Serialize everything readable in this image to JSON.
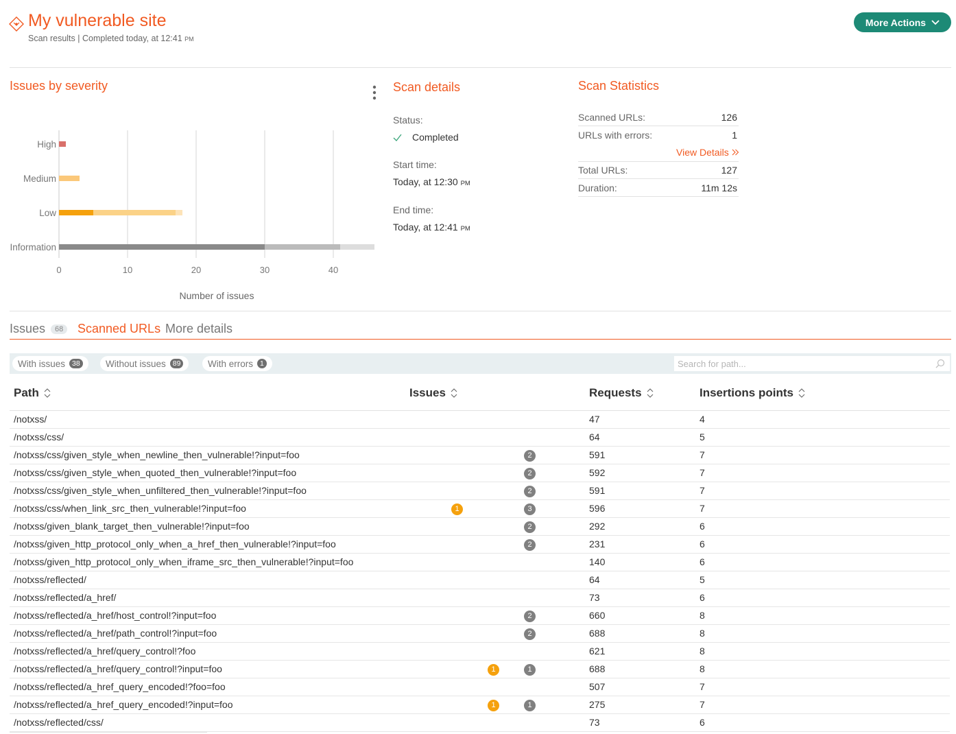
{
  "header": {
    "title": "My vulnerable site",
    "subtitle": "Scan results | Completed today, at 12:41",
    "subtitle_pm": "PM",
    "more_actions": "More Actions"
  },
  "issues_by_severity": {
    "title": "Issues by severity"
  },
  "chart_data": {
    "type": "bar",
    "orientation": "horizontal",
    "stacked": true,
    "categories": [
      "High",
      "Medium",
      "Low",
      "Information"
    ],
    "series": [
      {
        "values": [
          1,
          0,
          5,
          30
        ],
        "color_by_category": [
          "#d9706a",
          "#fbc87a",
          "#f5a10d",
          "#8a8a8a"
        ]
      },
      {
        "values": [
          0,
          3,
          12,
          11
        ],
        "color_by_category": [
          "#e3918b",
          "#fbc87a",
          "#fbd287",
          "#bbbbbb"
        ]
      },
      {
        "values": [
          0,
          0,
          1,
          5
        ],
        "color_by_category": [
          "#efb9b5",
          "#fde3b8",
          "#fde3b8",
          "#dddddd"
        ]
      }
    ],
    "xlabel": "Number of issues",
    "xticks": [
      0,
      10,
      20,
      30,
      40
    ],
    "xlim": [
      0,
      46
    ],
    "grid": true
  },
  "scan_details": {
    "title": "Scan details",
    "status_label": "Status:",
    "status_value": "Completed",
    "start_label": "Start time:",
    "start_value": "Today, at 12:30",
    "end_label": "End time:",
    "end_value": "Today, at 12:41",
    "pm": "PM"
  },
  "scan_statistics": {
    "title": "Scan Statistics",
    "scanned_label": "Scanned URLs:",
    "scanned_value": "126",
    "errors_label": "URLs with errors:",
    "errors_value": "1",
    "view_details": "View Details",
    "total_label": "Total URLs:",
    "total_value": "127",
    "duration_label": "Duration:",
    "duration_value": "11m 12s"
  },
  "tabs": [
    {
      "label": "Issues",
      "count": "68"
    },
    {
      "label": "Scanned URLs"
    },
    {
      "label": "More details"
    }
  ],
  "filters": [
    {
      "label": "With issues",
      "count": "38"
    },
    {
      "label": "Without issues",
      "count": "89"
    },
    {
      "label": "With errors",
      "count": "1"
    }
  ],
  "search_placeholder": "Search for path...",
  "table": {
    "headers": {
      "path": "Path",
      "issues": "Issues",
      "requests": "Requests",
      "insertion_points": "Insertions points"
    },
    "rows": [
      {
        "path": "/notxss/",
        "medium": "",
        "info": "",
        "requests": "47",
        "insertion_points": "4"
      },
      {
        "path": "/notxss/css/",
        "medium": "",
        "info": "",
        "requests": "64",
        "insertion_points": "5"
      },
      {
        "path": "/notxss/css/given_style_when_newline_then_vulnerable!?input=foo",
        "medium": "",
        "info": "2",
        "requests": "591",
        "insertion_points": "7"
      },
      {
        "path": "/notxss/css/given_style_when_quoted_then_vulnerable!?input=foo",
        "medium": "",
        "info": "2",
        "requests": "592",
        "insertion_points": "7"
      },
      {
        "path": "/notxss/css/given_style_when_unfiltered_then_vulnerable!?input=foo",
        "medium": "",
        "info": "2",
        "requests": "591",
        "insertion_points": "7"
      },
      {
        "path": "/notxss/css/when_link_src_then_vulnerable!?input=foo",
        "medium": "1",
        "info": "3",
        "requests": "596",
        "insertion_points": "7"
      },
      {
        "path": "/notxss/given_blank_target_then_vulnerable!?input=foo",
        "medium": "",
        "info": "2",
        "requests": "292",
        "insertion_points": "6"
      },
      {
        "path": "/notxss/given_http_protocol_only_when_a_href_then_vulnerable!?input=foo",
        "medium": "",
        "info": "2",
        "requests": "231",
        "insertion_points": "6"
      },
      {
        "path": "/notxss/given_http_protocol_only_when_iframe_src_then_vulnerable!?input=foo",
        "medium": "",
        "info": "",
        "requests": "140",
        "insertion_points": "6"
      },
      {
        "path": "/notxss/reflected/",
        "medium": "",
        "info": "",
        "requests": "64",
        "insertion_points": "5"
      },
      {
        "path": "/notxss/reflected/a_href/",
        "medium": "",
        "info": "",
        "requests": "73",
        "insertion_points": "6"
      },
      {
        "path": "/notxss/reflected/a_href/host_control!?input=foo",
        "medium": "",
        "info": "2",
        "requests": "660",
        "insertion_points": "8"
      },
      {
        "path": "/notxss/reflected/a_href/path_control!?input=foo",
        "medium": "",
        "info": "2",
        "requests": "688",
        "insertion_points": "8"
      },
      {
        "path": "/notxss/reflected/a_href/query_control!?foo",
        "medium": "",
        "info": "",
        "requests": "621",
        "insertion_points": "8"
      },
      {
        "path": "/notxss/reflected/a_href/query_control!?input=foo",
        "medium": "1",
        "info": "1",
        "requests": "688",
        "insertion_points": "8",
        "alt": true
      },
      {
        "path": "/notxss/reflected/a_href_query_encoded!?foo=foo",
        "medium": "",
        "info": "",
        "requests": "507",
        "insertion_points": "7"
      },
      {
        "path": "/notxss/reflected/a_href_query_encoded!?input=foo",
        "medium": "1",
        "info": "1",
        "requests": "275",
        "insertion_points": "7",
        "alt": true
      },
      {
        "path": "/notxss/reflected/css/",
        "medium": "",
        "info": "",
        "requests": "73",
        "insertion_points": "6"
      }
    ]
  },
  "colors": {
    "accent": "#f15a22",
    "primary_button": "#1d8a76",
    "medium_badge": "#f5a10d",
    "info_badge": "#808080",
    "success_check": "#3aa57a"
  },
  "icons": [
    "site-icon",
    "chevron-down-icon",
    "kebab-menu-icon",
    "check-icon",
    "double-chevron-right-icon",
    "sort-icon",
    "search-icon"
  ]
}
